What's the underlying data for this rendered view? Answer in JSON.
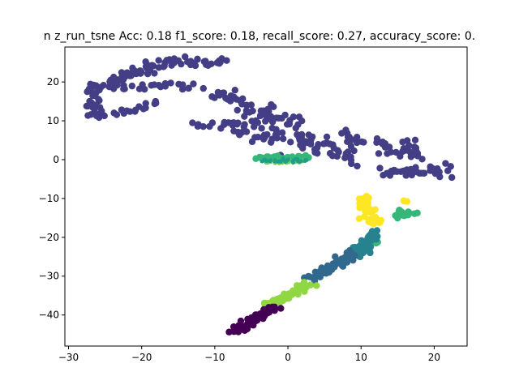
{
  "chart_data": {
    "type": "scatter",
    "title": "n z_run_tsne  Acc: 0.18 f1_score: 0.18, recall_score: 0.27, accuracy_score: 0.",
    "xlabel": "",
    "ylabel": "",
    "xlim": [
      -30.5,
      24.5
    ],
    "ylim": [
      -48,
      29
    ],
    "xticks": [
      -30,
      -20,
      -10,
      0,
      10,
      20
    ],
    "yticks": [
      -40,
      -30,
      -20,
      -10,
      0,
      10,
      20
    ],
    "grid": false,
    "legend": "none",
    "series": [
      {
        "color": "#433e85",
        "clusters": [
          {
            "from": [
              -26.5,
              18
            ],
            "to": [
              -17,
              25
            ],
            "n": 60,
            "spread": 1.2
          },
          {
            "from": [
              -17,
              25
            ],
            "to": [
              -9,
              25
            ],
            "n": 30,
            "spread": 1.0
          },
          {
            "from": [
              -26.5,
              19
            ],
            "to": [
              -26.5,
              11
            ],
            "n": 30,
            "spread": 0.9
          },
          {
            "from": [
              -26,
              11
            ],
            "to": [
              -18,
              14.5
            ],
            "n": 20,
            "spread": 0.8
          },
          {
            "from": [
              -23,
              19
            ],
            "to": [
              -12,
              19
            ],
            "n": 20,
            "spread": 1.2
          },
          {
            "from": [
              -10,
              18
            ],
            "to": [
              -4,
              12
            ],
            "n": 30,
            "spread": 1.5
          },
          {
            "from": [
              -4,
              12
            ],
            "to": [
              1,
              10
            ],
            "n": 25,
            "spread": 1.8
          },
          {
            "from": [
              -13,
              9
            ],
            "to": [
              -4,
              9
            ],
            "n": 20,
            "spread": 1.0
          },
          {
            "from": [
              -6,
              8
            ],
            "to": [
              3,
              4
            ],
            "n": 40,
            "spread": 2.0
          },
          {
            "from": [
              2,
              6
            ],
            "to": [
              9,
              0
            ],
            "n": 35,
            "spread": 1.5
          },
          {
            "from": [
              7,
              7
            ],
            "to": [
              10,
              4
            ],
            "n": 12,
            "spread": 1.0
          },
          {
            "from": [
              12,
              4
            ],
            "to": [
              17,
              1
            ],
            "n": 20,
            "spread": 1.2
          },
          {
            "from": [
              13,
              -3
            ],
            "to": [
              22,
              -3
            ],
            "n": 40,
            "spread": 1.6
          },
          {
            "from": [
              16,
              5
            ],
            "to": [
              18,
              1
            ],
            "n": 10,
            "spread": 1.0
          }
        ]
      },
      {
        "color": "#fde725",
        "clusters": [
          {
            "from": [
              10,
              -10
            ],
            "to": [
              12,
              -17
            ],
            "n": 40,
            "spread": 1.0
          },
          {
            "from": [
              16,
              -11
            ],
            "to": [
              16,
              -11
            ],
            "n": 3,
            "spread": 0.5
          }
        ]
      },
      {
        "color": "#35b779",
        "clusters": [
          {
            "from": [
              15,
              -14
            ],
            "to": [
              17,
              -14
            ],
            "n": 20,
            "spread": 0.7
          },
          {
            "from": [
              -4,
              0.5
            ],
            "to": [
              3,
              0.5
            ],
            "n": 40,
            "spread": 0.4
          },
          {
            "from": [
              11,
              -19
            ],
            "to": [
              12,
              -22
            ],
            "n": 6,
            "spread": 0.6
          }
        ]
      },
      {
        "color": "#26828e",
        "clusters": [
          {
            "from": [
              12,
              -19
            ],
            "to": [
              9,
              -25
            ],
            "n": 45,
            "spread": 0.9
          }
        ]
      },
      {
        "color": "#31688e",
        "clusters": [
          {
            "from": [
              9,
              -24
            ],
            "to": [
              3,
              -31
            ],
            "n": 50,
            "spread": 1.0
          }
        ]
      },
      {
        "color": "#90d743",
        "clusters": [
          {
            "from": [
              3,
              -32
            ],
            "to": [
              -3,
              -38
            ],
            "n": 45,
            "spread": 0.8
          }
        ]
      },
      {
        "color": "#440154",
        "clusters": [
          {
            "from": [
              -2,
              -38
            ],
            "to": [
              -7,
              -44
            ],
            "n": 70,
            "spread": 0.8
          }
        ]
      },
      {
        "color": "#6ece58",
        "clusters": [
          {
            "from": [
              -3,
              -0.5
            ],
            "to": [
              2,
              -0.5
            ],
            "n": 30,
            "spread": 0.35
          }
        ]
      },
      {
        "color": "#1f9e89",
        "clusters": [
          {
            "from": [
              -3.5,
              -0.3
            ],
            "to": [
              2.5,
              -0.3
            ],
            "n": 30,
            "spread": 0.4
          }
        ]
      }
    ]
  }
}
